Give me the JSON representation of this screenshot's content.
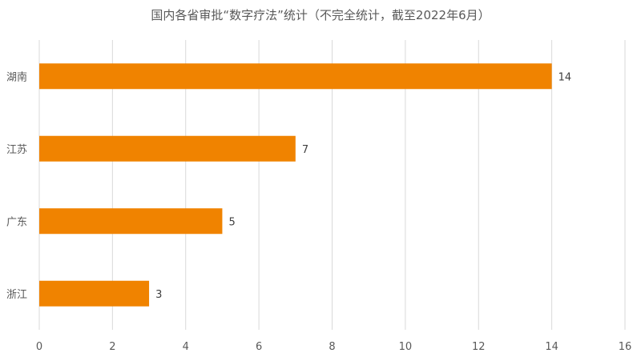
{
  "chart_data": {
    "type": "bar",
    "orientation": "horizontal",
    "title": "国内各省审批“数字疗法”统计（不完全统计，截至2022年6月）",
    "categories": [
      "湖南",
      "江苏",
      "广东",
      "浙江"
    ],
    "values": [
      14,
      7,
      5,
      3
    ],
    "xlabel": "",
    "ylabel": "",
    "xlim": [
      0,
      16
    ],
    "xticks": [
      "0",
      "2",
      "4",
      "6",
      "8",
      "10",
      "12",
      "14",
      "16"
    ],
    "grid": true,
    "bar_color": "#F08300",
    "data_labels": [
      "14",
      "7",
      "5",
      "3"
    ]
  }
}
